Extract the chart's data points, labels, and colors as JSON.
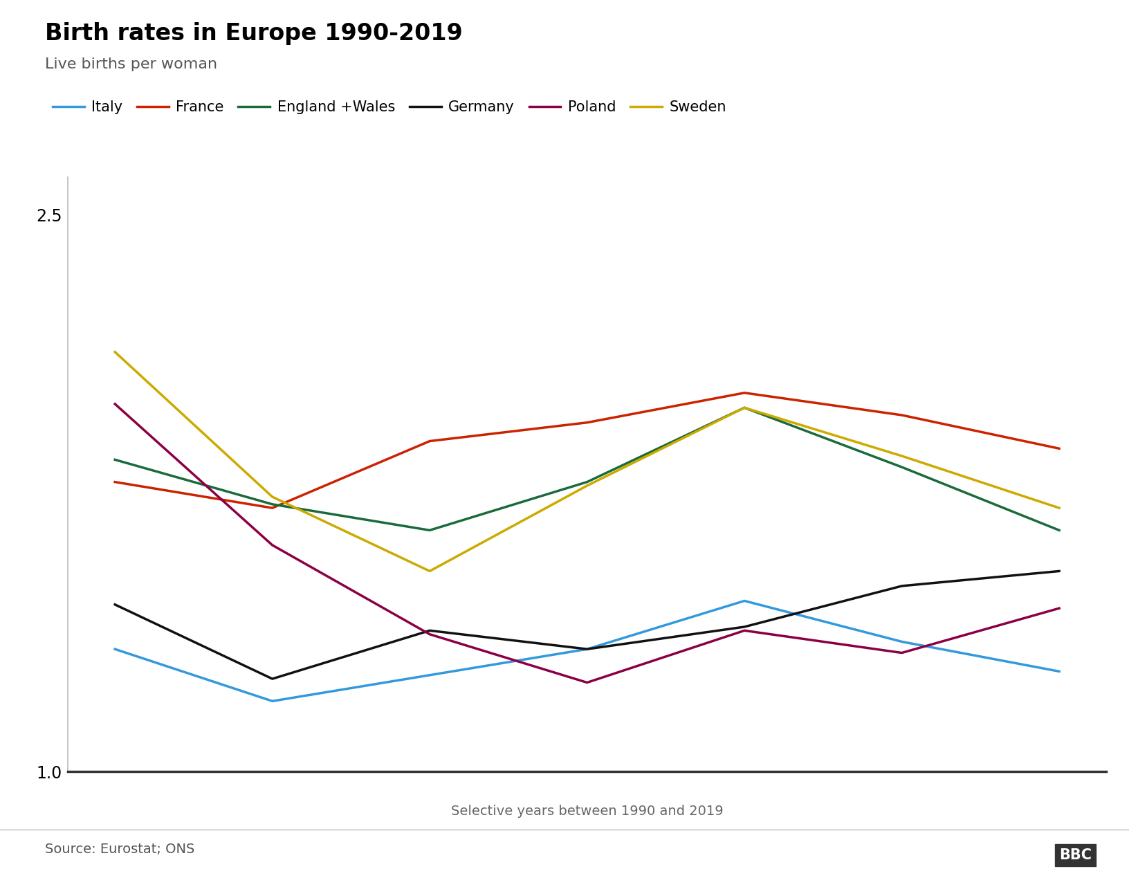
{
  "title": "Birth rates in Europe 1990-2019",
  "subtitle": "Live births per woman",
  "xlabel": "Selective years between 1990 and 2019",
  "source": "Source: Eurostat; ONS",
  "x_positions": [
    0,
    1,
    2,
    3,
    4,
    5,
    6
  ],
  "ylim": [
    1.0,
    2.6
  ],
  "yticks": [
    1.0,
    2.5
  ],
  "series": {
    "Italy": {
      "color": "#3399dd",
      "values": [
        1.33,
        1.19,
        1.26,
        1.33,
        1.46,
        1.35,
        1.27
      ]
    },
    "France": {
      "color": "#cc2200",
      "values": [
        1.78,
        1.71,
        1.89,
        1.94,
        2.02,
        1.96,
        1.87
      ]
    },
    "England +Wales": {
      "color": "#1a6b3c",
      "values": [
        1.84,
        1.72,
        1.65,
        1.78,
        1.98,
        1.82,
        1.65
      ]
    },
    "Germany": {
      "color": "#111111",
      "values": [
        1.45,
        1.25,
        1.38,
        1.33,
        1.39,
        1.5,
        1.54
      ]
    },
    "Poland": {
      "color": "#8b0045",
      "values": [
        1.99,
        1.61,
        1.37,
        1.24,
        1.38,
        1.32,
        1.44
      ]
    },
    "Sweden": {
      "color": "#ccaa00",
      "values": [
        2.13,
        1.74,
        1.54,
        1.77,
        1.98,
        1.85,
        1.71
      ]
    }
  },
  "series_order": [
    "Italy",
    "France",
    "England +Wales",
    "Germany",
    "Poland",
    "Sweden"
  ],
  "line_width": 2.5,
  "title_fontsize": 24,
  "subtitle_fontsize": 16,
  "legend_fontsize": 15,
  "tick_fontsize": 17,
  "xlabel_fontsize": 14,
  "source_fontsize": 14,
  "background_color": "#ffffff"
}
